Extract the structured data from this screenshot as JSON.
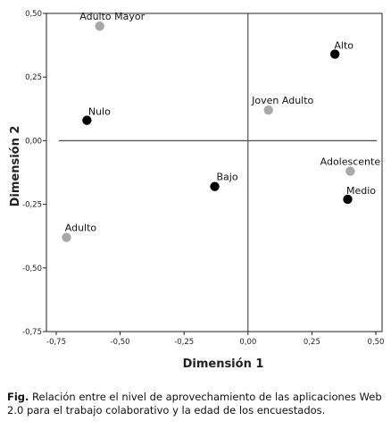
{
  "chart_data": {
    "type": "scatter",
    "title": "",
    "xlabel": "Dimensión 1",
    "ylabel": "Dimensión 2",
    "xlim": [
      -0.75,
      0.5
    ],
    "ylim": [
      -0.75,
      0.5
    ],
    "x_ticks": [
      "-0,75",
      "-0,50",
      "-0,25",
      "0,00",
      "0,25",
      "0,50"
    ],
    "y_ticks": [
      "0,50",
      "0,25",
      "0,00",
      "-0,25",
      "-0,50",
      "-0,75"
    ],
    "grid": false,
    "reference_lines": {
      "x": 0,
      "y": 0
    },
    "colors": {
      "black_points": "#000000",
      "gray_points": "#a8a8a8"
    },
    "series": [
      {
        "group": "black",
        "color": "#000000",
        "points": [
          {
            "label": "Alto",
            "x": 0.34,
            "y": 0.34
          },
          {
            "label": "Nulo",
            "x": -0.63,
            "y": 0.08
          },
          {
            "label": "Bajo",
            "x": -0.13,
            "y": -0.18
          },
          {
            "label": "Medio",
            "x": 0.39,
            "y": -0.23
          }
        ]
      },
      {
        "group": "gray",
        "color": "#a8a8a8",
        "points": [
          {
            "label": "Adulto Mayor",
            "x": -0.58,
            "y": 0.45
          },
          {
            "label": "Joven Adulto",
            "x": 0.08,
            "y": 0.12
          },
          {
            "label": "Adolescente",
            "x": 0.4,
            "y": -0.12
          },
          {
            "label": "Adulto",
            "x": -0.71,
            "y": -0.38
          }
        ]
      }
    ]
  },
  "caption": {
    "prefix": "Fig.",
    "text": " Relación entre el nivel de aprovechamiento de las aplicaciones Web 2.0 para el trabajo colaborativo y la edad de los encuestados."
  }
}
